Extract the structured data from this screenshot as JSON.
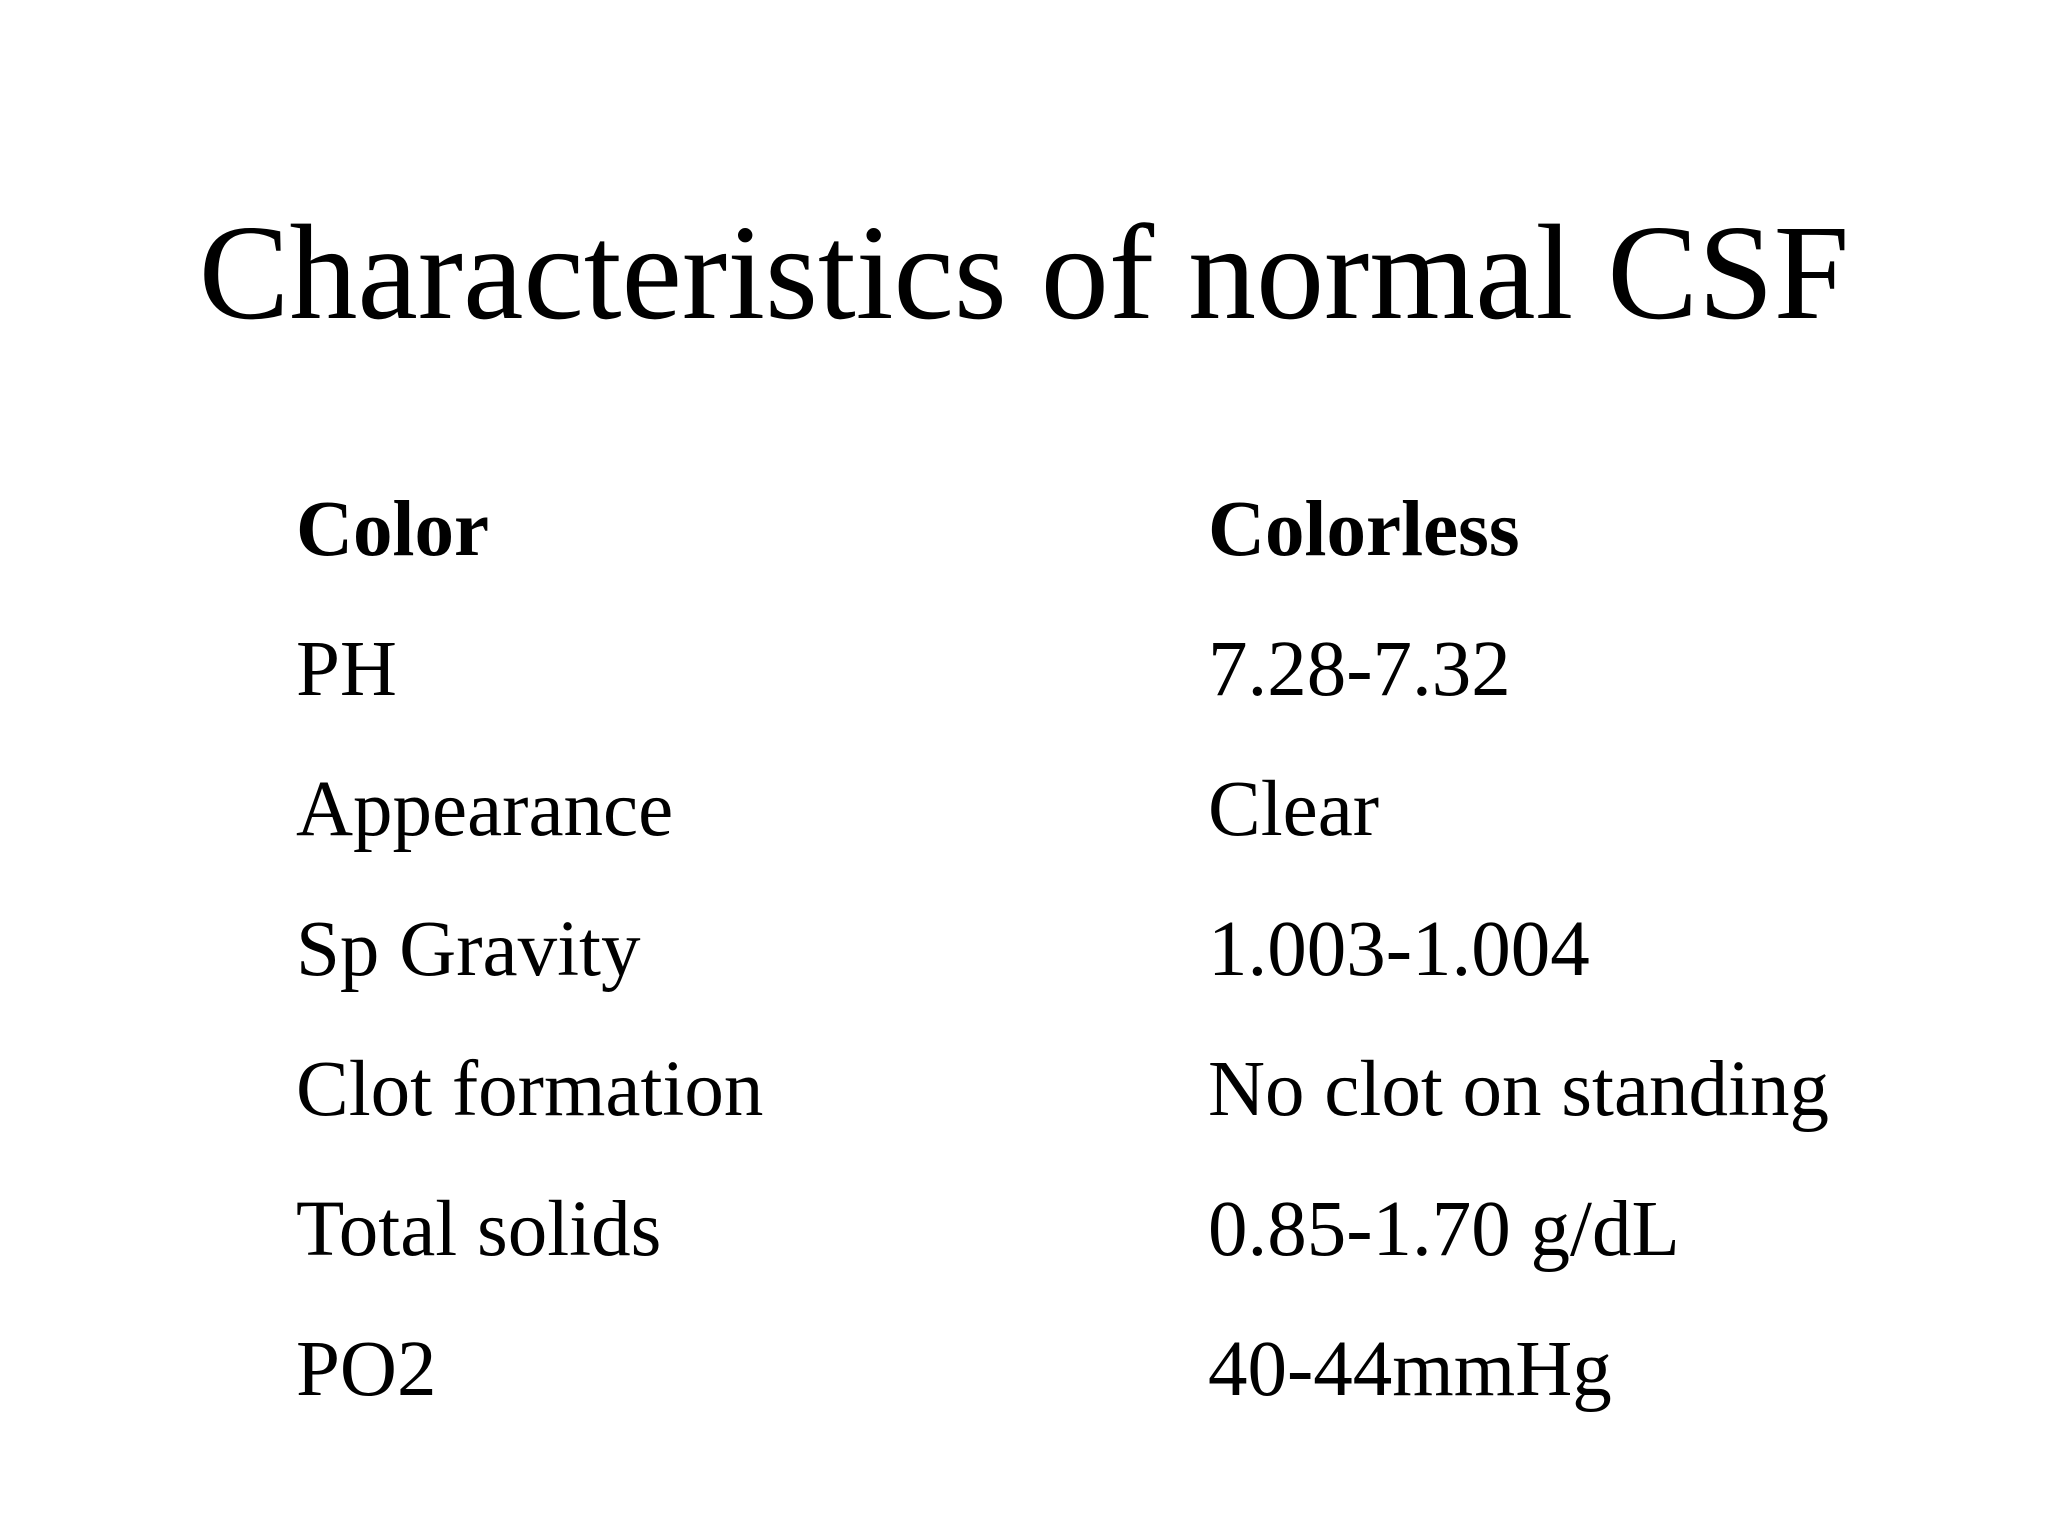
{
  "title": "Characteristics of normal CSF",
  "rows": [
    {
      "property": "Color",
      "value": "Colorless",
      "bold": true
    },
    {
      "property": "PH",
      "value": "7.28-7.32",
      "bold": false
    },
    {
      "property": "Appearance",
      "value": "Clear",
      "bold": false
    },
    {
      "property": "Sp Gravity",
      "value": "1.003-1.004",
      "bold": false
    },
    {
      "property": "Clot formation",
      "value": "No clot on standing",
      "bold": false
    },
    {
      "property": "Total solids",
      "value": "0.85-1.70 g/dL",
      "bold": false
    },
    {
      "property": "PO2",
      "value": "40-44mmHg",
      "bold": false
    }
  ]
}
